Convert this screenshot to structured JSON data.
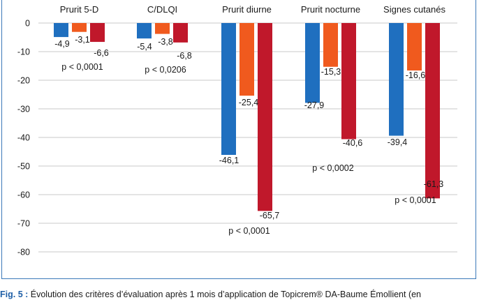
{
  "chart_data": {
    "type": "bar",
    "categories": [
      "Prurit 5-D",
      "C/DLQI",
      "Prurit diurne",
      "Prurit nocturne",
      "Signes cutanés"
    ],
    "series": [
      {
        "values": [
          -4.9,
          -5.4,
          -46.1,
          -27.9,
          -39.4
        ],
        "labels": [
          "-4,9",
          "-5,4",
          "-46,1",
          "-27,9",
          "-39,4"
        ],
        "color": "#1f6fbf"
      },
      {
        "values": [
          -3.1,
          -3.8,
          -25.4,
          -15.3,
          -16.6
        ],
        "labels": [
          "-3,1",
          "-3,8",
          "-25,4",
          "-15,3",
          "-16,6"
        ],
        "color": "#f05a1e"
      },
      {
        "values": [
          -6.6,
          -6.8,
          -65.7,
          -40.6,
          -61.3
        ],
        "labels": [
          "-6,6",
          "-6,8",
          "-65,7",
          "-40,6",
          "-61,3"
        ],
        "color": "#c0182b"
      }
    ],
    "ylim": [
      -80,
      0
    ],
    "yticks": [
      0,
      -10,
      -20,
      -30,
      -40,
      -50,
      -60,
      -70,
      -80
    ],
    "grid": true,
    "annotations": [
      "p < 0,0001",
      "p < 0,0206",
      "p < 0,0001",
      "p < 0,0002",
      "p < 0,0001"
    ]
  },
  "caption": {
    "fig_label": "Fig. 5 :",
    "text": " Évolution des critères d’évaluation après 1 mois d’application de Topicrem® DA-Baume Émollient (en"
  }
}
